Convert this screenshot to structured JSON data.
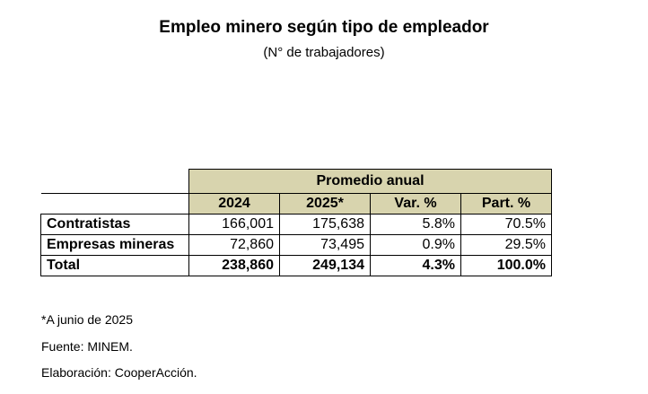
{
  "title": "Empleo minero según tipo de empleador",
  "subtitle": "(N° de trabajadores)",
  "table": {
    "group_header": "Promedio anual",
    "columns": [
      "2024",
      "2025*",
      "Var. %",
      "Part. %"
    ],
    "rows": [
      {
        "label": "Contratistas",
        "values": [
          "166,001",
          "175,638",
          "5.8%",
          "70.5%"
        ]
      },
      {
        "label": "Empresas mineras",
        "values": [
          "72,860",
          "73,495",
          "0.9%",
          "29.5%"
        ]
      }
    ],
    "total": {
      "label": "Total",
      "values": [
        "238,860",
        "249,134",
        "4.3%",
        "100.0%"
      ]
    },
    "header_color": "#d8d4ae"
  },
  "notes": [
    "*A junio de 2025",
    "Fuente: MINEM.",
    "Elaboración: CooperAcción."
  ]
}
